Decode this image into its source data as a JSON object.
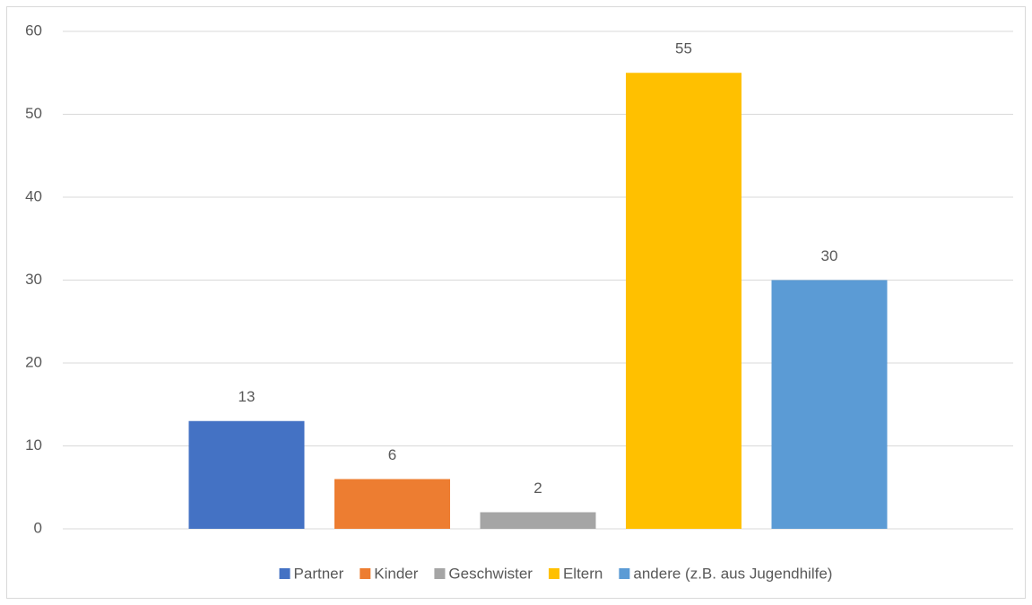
{
  "chart_data": {
    "type": "bar",
    "categories": [
      null
    ],
    "series": [
      {
        "name": "Partner",
        "color": "#4472c4",
        "values": [
          13
        ]
      },
      {
        "name": "Kinder",
        "color": "#ed7d31",
        "values": [
          6
        ]
      },
      {
        "name": "Geschwister",
        "color": "#a5a5a5",
        "values": [
          2
        ]
      },
      {
        "name": "Eltern",
        "color": "#ffc000",
        "values": [
          55
        ]
      },
      {
        "name": "andere (z.B. aus Jugendhilfe)",
        "color": "#5b9bd5",
        "values": [
          30
        ]
      }
    ],
    "ylim": [
      0,
      60
    ],
    "yticks": [
      0,
      10,
      20,
      30,
      40,
      50,
      60
    ],
    "grid": true,
    "legend": "bottom"
  }
}
